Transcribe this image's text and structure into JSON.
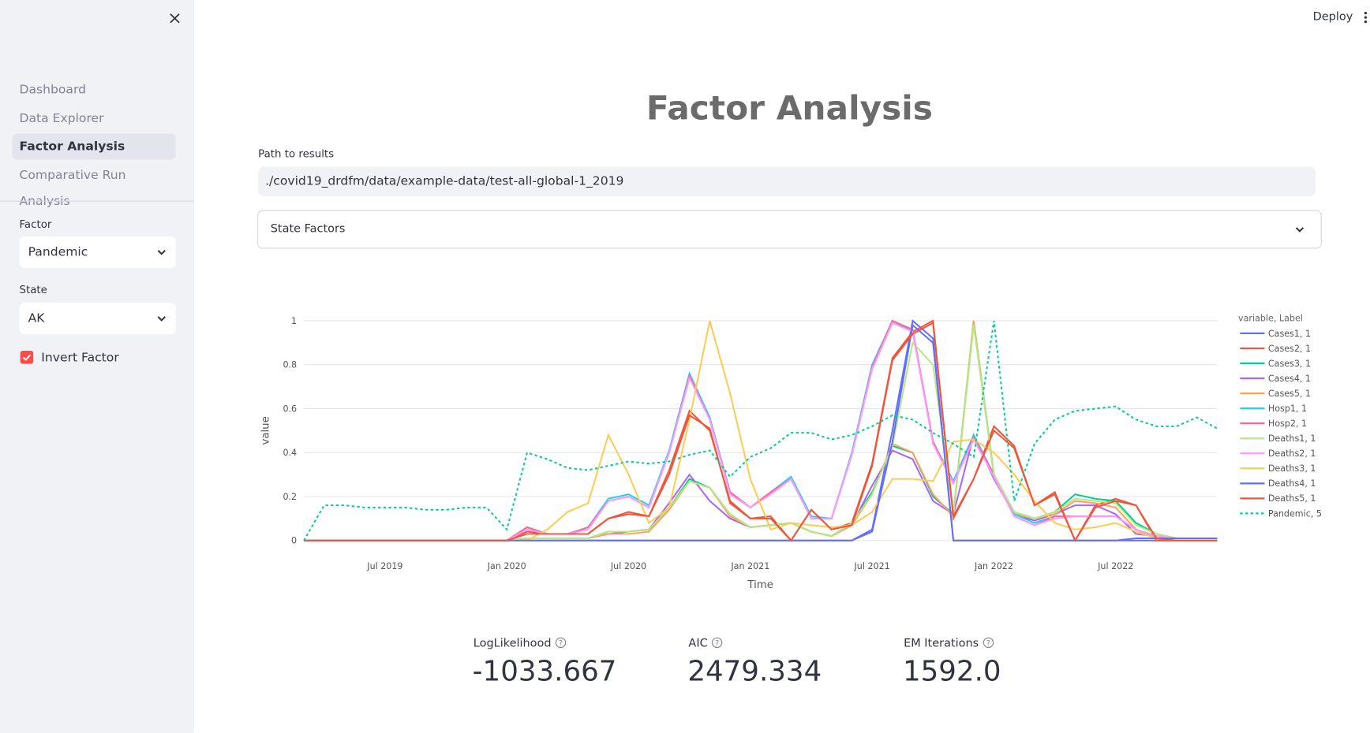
{
  "sidebar": {
    "nav": [
      "Dashboard",
      "Data Explorer",
      "Factor Analysis",
      "Comparative Run Analysis"
    ],
    "factor_label": "Factor",
    "factor_value": "Pandemic",
    "state_label": "State",
    "state_value": "AK",
    "checkbox_label": "Invert Factor"
  },
  "header": {
    "deploy": "Deploy"
  },
  "main": {
    "title": "Factor Analysis",
    "path_label": "Path to results",
    "path_value": "./covid19_drdfm/data/example-data/test-all-global-1_2019",
    "expander": "State Factors",
    "metrics": [
      {
        "label": "LogLikelihood",
        "value": "-1033.667"
      },
      {
        "label": "AIC",
        "value": "2479.334"
      },
      {
        "label": "EM Iterations",
        "value": "1592.0"
      }
    ]
  },
  "chart_data": {
    "type": "line",
    "x_label": "Time",
    "y_label": "value",
    "legend_title": "variable, Label",
    "grid": true,
    "x": [
      "2019-03",
      "2019-04",
      "2019-05",
      "2019-06",
      "2019-07",
      "2019-08",
      "2019-09",
      "2019-10",
      "2019-11",
      "2019-12",
      "2020-01",
      "2020-02",
      "2020-03",
      "2020-04",
      "2020-05",
      "2020-06",
      "2020-07",
      "2020-08",
      "2020-09",
      "2020-10",
      "2020-11",
      "2020-12",
      "2021-01",
      "2021-02",
      "2021-03",
      "2021-04",
      "2021-05",
      "2021-06",
      "2021-07",
      "2021-08",
      "2021-09",
      "2021-10",
      "2021-11",
      "2021-12",
      "2022-01",
      "2022-02",
      "2022-03",
      "2022-04",
      "2022-05",
      "2022-06",
      "2022-07",
      "2022-08",
      "2022-09",
      "2022-10",
      "2022-11",
      "2022-12"
    ],
    "xlim": [
      "2019-03",
      "2022-12"
    ],
    "xticks": [
      {
        "value": "2019-07",
        "label": "Jul 2019"
      },
      {
        "value": "2020-01",
        "label": "Jan 2020"
      },
      {
        "value": "2020-07",
        "label": "Jul 2020"
      },
      {
        "value": "2021-01",
        "label": "Jan 2021"
      },
      {
        "value": "2021-07",
        "label": "Jul 2021"
      },
      {
        "value": "2022-01",
        "label": "Jan 2022"
      },
      {
        "value": "2022-07",
        "label": "Jul 2022"
      }
    ],
    "ylim": [
      -0.05,
      1.05
    ],
    "yticks": [
      0,
      0.2,
      0.4,
      0.6,
      0.8,
      1
    ],
    "series": [
      {
        "name": "Cases1, 1",
        "color": "#636efa",
        "values": [
          0,
          0,
          0,
          0,
          0,
          0,
          0,
          0,
          0,
          0,
          0,
          0,
          0,
          0,
          0,
          0,
          0,
          0,
          0,
          0,
          0,
          0,
          0,
          0,
          0,
          0,
          0,
          0,
          0.05,
          0.5,
          1,
          0.92,
          0,
          0,
          0,
          0,
          0,
          0,
          0,
          0,
          0,
          0,
          0,
          0,
          0,
          0
        ]
      },
      {
        "name": "Cases2, 1",
        "color": "#ef553b",
        "values": [
          0,
          0,
          0,
          0,
          0,
          0,
          0,
          0,
          0,
          0,
          0,
          0.04,
          0.03,
          0.03,
          0.03,
          0.1,
          0.12,
          0.11,
          0.32,
          0.59,
          0.5,
          0.18,
          0.1,
          0.11,
          0,
          0.14,
          0.05,
          0.08,
          0.35,
          0.83,
          0.95,
          1,
          0.1,
          0.28,
          0.52,
          0.43,
          0.16,
          0.22,
          0,
          0.16,
          0.19,
          0.16,
          0,
          0,
          0,
          0
        ]
      },
      {
        "name": "Cases3, 1",
        "color": "#00cc96",
        "values": [
          0,
          0,
          0,
          0,
          0,
          0,
          0,
          0,
          0,
          0,
          0,
          0.01,
          0.01,
          0.01,
          0.01,
          0.04,
          0.04,
          0.05,
          0.15,
          0.28,
          0.24,
          0.12,
          0.06,
          0.07,
          0.08,
          0.04,
          0.02,
          0.08,
          0.22,
          0.43,
          0.4,
          0.2,
          0.12,
          1,
          0.3,
          0.13,
          0.1,
          0.13,
          0.21,
          0.19,
          0.18,
          0.08,
          0.03,
          0.01,
          0.01,
          0.01
        ]
      },
      {
        "name": "Cases4, 1",
        "color": "#ab63fa",
        "values": [
          0,
          0,
          0,
          0,
          0,
          0,
          0,
          0,
          0,
          0,
          0,
          0.01,
          0.01,
          0.01,
          0.01,
          0.03,
          0.04,
          0.05,
          0.17,
          0.3,
          0.18,
          0.1,
          0.06,
          0.07,
          0.08,
          0.04,
          0.02,
          0.07,
          0.25,
          0.41,
          0.37,
          0.18,
          0.12,
          0.48,
          0.28,
          0.12,
          0.09,
          0.12,
          0.16,
          0.16,
          0.12,
          0.03,
          0.02,
          0.01,
          0.01,
          0.01
        ]
      },
      {
        "name": "Cases5, 1",
        "color": "#ffa15a",
        "values": [
          0,
          0,
          0,
          0,
          0,
          0,
          0,
          0,
          0,
          0,
          0,
          0.01,
          0.01,
          0.01,
          0.01,
          0.03,
          0.03,
          0.04,
          0.14,
          0.27,
          0.24,
          0.11,
          0.06,
          0.07,
          0.08,
          0.04,
          0.02,
          0.07,
          0.21,
          0.44,
          0.4,
          0.21,
          0.11,
          1,
          0.29,
          0.12,
          0.1,
          0.12,
          0.18,
          0.17,
          0.15,
          0.05,
          0.01,
          0.01,
          0.01,
          0.01
        ]
      },
      {
        "name": "Hosp1, 1",
        "color": "#19d3f3",
        "values": [
          0,
          0,
          0,
          0,
          0,
          0,
          0,
          0,
          0,
          0,
          0,
          0.06,
          0.03,
          0.03,
          0.06,
          0.19,
          0.21,
          0.16,
          0.41,
          0.76,
          0.56,
          0.22,
          0.15,
          0.22,
          0.29,
          0.11,
          0.1,
          0.4,
          0.8,
          1,
          0.95,
          0.45,
          0.27,
          0.48,
          0.3,
          0.12,
          0.08,
          0.11,
          0.11,
          0.11,
          0.11,
          0.05,
          0.02,
          0.01,
          0.01,
          0.01
        ]
      },
      {
        "name": "Hosp2, 1",
        "color": "#ff6692",
        "values": [
          0,
          0,
          0,
          0,
          0,
          0,
          0,
          0,
          0,
          0,
          0,
          0.06,
          0.03,
          0.03,
          0.06,
          0.18,
          0.2,
          0.15,
          0.4,
          0.75,
          0.55,
          0.22,
          0.15,
          0.22,
          0.28,
          0.1,
          0.1,
          0.39,
          0.79,
          1,
          0.96,
          0.45,
          0.26,
          0.47,
          0.3,
          0.11,
          0.07,
          0.11,
          0.11,
          0.11,
          0.11,
          0.05,
          0.02,
          0.01,
          0.01,
          0.01
        ]
      },
      {
        "name": "Deaths1, 1",
        "color": "#b6e880",
        "values": [
          0,
          0,
          0,
          0,
          0,
          0,
          0,
          0,
          0,
          0,
          0,
          0.01,
          0.01,
          0.01,
          0.01,
          0.04,
          0.04,
          0.05,
          0.15,
          0.27,
          0.24,
          0.12,
          0.06,
          0.07,
          0.08,
          0.04,
          0.02,
          0.08,
          0.21,
          0.43,
          0.9,
          0.8,
          0.12,
          0.98,
          0.3,
          0.13,
          0.1,
          0.13,
          0.19,
          0.18,
          0.17,
          0.07,
          0.03,
          0.01,
          0.01,
          0.01
        ]
      },
      {
        "name": "Deaths2, 1",
        "color": "#ff97ff",
        "values": [
          0,
          0,
          0,
          0,
          0,
          0,
          0,
          0,
          0,
          0,
          0,
          0.05,
          0.03,
          0.03,
          0.05,
          0.18,
          0.2,
          0.15,
          0.4,
          0.74,
          0.55,
          0.21,
          0.15,
          0.21,
          0.28,
          0.1,
          0.1,
          0.39,
          0.78,
          0.99,
          0.95,
          0.44,
          0.26,
          0.46,
          0.29,
          0.11,
          0.07,
          0.1,
          0.11,
          0.11,
          0.11,
          0.05,
          0.02,
          0.01,
          0.01,
          0.01
        ]
      },
      {
        "name": "Deaths3, 1",
        "color": "#fecb52",
        "values": [
          0,
          0,
          0,
          0,
          0,
          0,
          0,
          0,
          0,
          0,
          0,
          0,
          0.05,
          0.13,
          0.17,
          0.48,
          0.3,
          0.08,
          0.15,
          0.55,
          1,
          0.67,
          0.28,
          0.05,
          0.08,
          0.07,
          0.06,
          0.07,
          0.13,
          0.28,
          0.28,
          0.27,
          0.45,
          0.46,
          0.4,
          0.3,
          0.18,
          0.08,
          0.05,
          0.06,
          0.08,
          0.04,
          0.01,
          0,
          0,
          0
        ]
      },
      {
        "name": "Deaths4, 1",
        "color": "#636efa",
        "values": [
          0,
          0,
          0,
          0,
          0,
          0,
          0,
          0,
          0,
          0,
          0,
          0,
          0,
          0,
          0,
          0,
          0,
          0,
          0,
          0,
          0,
          0,
          0,
          0,
          0,
          0,
          0,
          0,
          0.04,
          0.45,
          0.98,
          0.9,
          0,
          0,
          0,
          0,
          0,
          0,
          0,
          0,
          0,
          0.01,
          0.01,
          0.01,
          0.01,
          0.01
        ]
      },
      {
        "name": "Deaths5, 1",
        "color": "#ef553b",
        "values": [
          0,
          0,
          0,
          0,
          0,
          0,
          0,
          0,
          0,
          0,
          0,
          0.03,
          0.03,
          0.03,
          0.03,
          0.1,
          0.13,
          0.11,
          0.3,
          0.57,
          0.51,
          0.17,
          0.1,
          0.1,
          0,
          0.14,
          0.05,
          0.07,
          0.34,
          0.82,
          0.94,
          0.99,
          0.11,
          0.28,
          0.5,
          0.42,
          0.16,
          0.21,
          0,
          0.15,
          0.18,
          0.16,
          0.01,
          0,
          0,
          0
        ]
      },
      {
        "name": "Pandemic, 5",
        "color": "#00cc96",
        "dash": true,
        "values": [
          0,
          0.16,
          0.16,
          0.15,
          0.15,
          0.15,
          0.14,
          0.14,
          0.15,
          0.15,
          0.05,
          0.4,
          0.37,
          0.33,
          0.32,
          0.34,
          0.36,
          0.35,
          0.36,
          0.39,
          0.41,
          0.29,
          0.38,
          0.42,
          0.49,
          0.49,
          0.46,
          0.48,
          0.52,
          0.57,
          0.55,
          0.49,
          0.44,
          0.38,
          1,
          0.18,
          0.44,
          0.55,
          0.59,
          0.6,
          0.61,
          0.55,
          0.52,
          0.52,
          0.56,
          0.51
        ]
      }
    ]
  }
}
